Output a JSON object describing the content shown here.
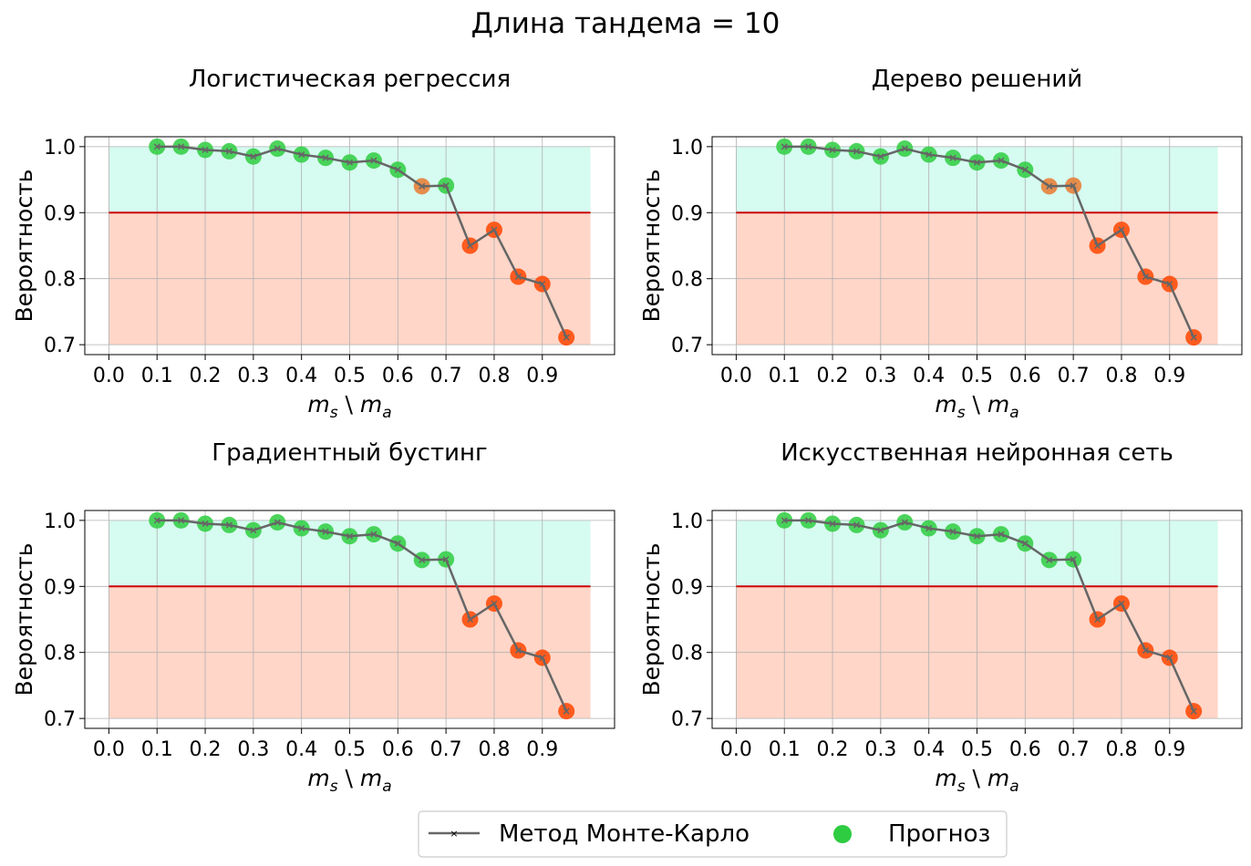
{
  "figure": {
    "suptitle": "Длина тандема = 10"
  },
  "legend": {
    "items": [
      {
        "label": "Метод Монте-Карло",
        "kind": "line-x",
        "color": "#666666"
      },
      {
        "label": "Прогноз",
        "kind": "dot",
        "color": "#2ecc40"
      }
    ]
  },
  "colors": {
    "ok_region": "#d6fbf0",
    "bad_region": "#ffd6c8",
    "threshold_line": "#cc0000",
    "mc_line": "#666666",
    "pred_ok": "#2ecc40",
    "pred_bad": "#ff4500"
  },
  "chart_data": [
    {
      "type": "line",
      "title": "Логистическая регрессия",
      "xlabel": "m_s \\ m_a",
      "ylabel": "Вероятность",
      "xticks": [
        "0.0",
        "0.1",
        "0.2",
        "0.3",
        "0.4",
        "0.5",
        "0.6",
        "0.7",
        "0.8",
        "0.9"
      ],
      "yticks": [
        "0.7",
        "0.8",
        "0.9",
        "1.0"
      ],
      "xlim": [
        -0.05,
        1.05
      ],
      "ylim": [
        0.685,
        1.015
      ],
      "grid": true,
      "threshold": 0.9,
      "x": [
        0.1,
        0.15,
        0.2,
        0.25,
        0.3,
        0.35,
        0.4,
        0.45,
        0.5,
        0.55,
        0.6,
        0.65,
        0.7,
        0.75,
        0.8,
        0.85,
        0.9,
        0.95
      ],
      "series": [
        {
          "name": "Метод Монте-Карло",
          "values": [
            1.0,
            1.0,
            0.995,
            0.993,
            0.985,
            0.997,
            0.988,
            0.983,
            0.976,
            0.979,
            0.965,
            0.94,
            0.941,
            0.85,
            0.874,
            0.803,
            0.792,
            0.711
          ]
        },
        {
          "name": "Прогноз",
          "values": [
            1.0,
            1.0,
            0.995,
            0.993,
            0.985,
            0.997,
            0.988,
            0.983,
            0.976,
            0.979,
            0.965,
            0.94,
            0.941,
            0.85,
            0.874,
            0.803,
            0.792,
            0.711
          ],
          "point_colors": [
            "#2ecc40",
            "#2ecc40",
            "#2ecc40",
            "#2ecc40",
            "#2ecc40",
            "#2ecc40",
            "#2ecc40",
            "#2ecc40",
            "#2ecc40",
            "#2ecc40",
            "#2ecc40",
            "#e8792f",
            "#2ecc40",
            "#ff4500",
            "#ff4500",
            "#ff4500",
            "#ff4500",
            "#ff4500"
          ]
        }
      ]
    },
    {
      "type": "line",
      "title": "Дерево решений",
      "xlabel": "m_s \\ m_a",
      "ylabel": "Вероятность",
      "xticks": [
        "0.0",
        "0.1",
        "0.2",
        "0.3",
        "0.4",
        "0.5",
        "0.6",
        "0.7",
        "0.8",
        "0.9"
      ],
      "yticks": [
        "0.7",
        "0.8",
        "0.9",
        "1.0"
      ],
      "xlim": [
        -0.05,
        1.05
      ],
      "ylim": [
        0.685,
        1.015
      ],
      "grid": true,
      "threshold": 0.9,
      "x": [
        0.1,
        0.15,
        0.2,
        0.25,
        0.3,
        0.35,
        0.4,
        0.45,
        0.5,
        0.55,
        0.6,
        0.65,
        0.7,
        0.75,
        0.8,
        0.85,
        0.9,
        0.95
      ],
      "series": [
        {
          "name": "Метод Монте-Карло",
          "values": [
            1.0,
            1.0,
            0.995,
            0.993,
            0.985,
            0.997,
            0.988,
            0.983,
            0.976,
            0.979,
            0.965,
            0.94,
            0.941,
            0.85,
            0.874,
            0.803,
            0.792,
            0.711
          ]
        },
        {
          "name": "Прогноз",
          "values": [
            1.0,
            1.0,
            0.995,
            0.993,
            0.985,
            0.997,
            0.988,
            0.983,
            0.976,
            0.979,
            0.965,
            0.94,
            0.941,
            0.85,
            0.874,
            0.803,
            0.792,
            0.711
          ],
          "point_colors": [
            "#2ecc40",
            "#2ecc40",
            "#2ecc40",
            "#2ecc40",
            "#2ecc40",
            "#2ecc40",
            "#2ecc40",
            "#2ecc40",
            "#2ecc40",
            "#2ecc40",
            "#2ecc40",
            "#e8792f",
            "#e8792f",
            "#ff4500",
            "#ff4500",
            "#ff4500",
            "#ff4500",
            "#ff4500"
          ]
        }
      ]
    },
    {
      "type": "line",
      "title": "Градиентный бустинг",
      "xlabel": "m_s \\ m_a",
      "ylabel": "Вероятность",
      "xticks": [
        "0.0",
        "0.1",
        "0.2",
        "0.3",
        "0.4",
        "0.5",
        "0.6",
        "0.7",
        "0.8",
        "0.9"
      ],
      "yticks": [
        "0.7",
        "0.8",
        "0.9",
        "1.0"
      ],
      "xlim": [
        -0.05,
        1.05
      ],
      "ylim": [
        0.685,
        1.015
      ],
      "grid": true,
      "threshold": 0.9,
      "x": [
        0.1,
        0.15,
        0.2,
        0.25,
        0.3,
        0.35,
        0.4,
        0.45,
        0.5,
        0.55,
        0.6,
        0.65,
        0.7,
        0.75,
        0.8,
        0.85,
        0.9,
        0.95
      ],
      "series": [
        {
          "name": "Метод Монте-Карло",
          "values": [
            1.0,
            1.0,
            0.995,
            0.993,
            0.985,
            0.997,
            0.988,
            0.983,
            0.976,
            0.979,
            0.965,
            0.94,
            0.941,
            0.85,
            0.874,
            0.803,
            0.792,
            0.711
          ]
        },
        {
          "name": "Прогноз",
          "values": [
            1.0,
            1.0,
            0.995,
            0.993,
            0.985,
            0.997,
            0.988,
            0.983,
            0.976,
            0.979,
            0.965,
            0.94,
            0.941,
            0.85,
            0.874,
            0.803,
            0.792,
            0.711
          ],
          "point_colors": [
            "#2ecc40",
            "#2ecc40",
            "#2ecc40",
            "#2ecc40",
            "#2ecc40",
            "#2ecc40",
            "#2ecc40",
            "#2ecc40",
            "#2ecc40",
            "#2ecc40",
            "#2ecc40",
            "#2ecc40",
            "#2ecc40",
            "#ff4500",
            "#ff4500",
            "#ff4500",
            "#ff4500",
            "#ff4500"
          ]
        }
      ]
    },
    {
      "type": "line",
      "title": "Искусственная нейронная сеть",
      "xlabel": "m_s \\ m_a",
      "ylabel": "Вероятность",
      "xticks": [
        "0.0",
        "0.1",
        "0.2",
        "0.3",
        "0.4",
        "0.5",
        "0.6",
        "0.7",
        "0.8",
        "0.9"
      ],
      "yticks": [
        "0.7",
        "0.8",
        "0.9",
        "1.0"
      ],
      "xlim": [
        -0.05,
        1.05
      ],
      "ylim": [
        0.685,
        1.015
      ],
      "grid": true,
      "threshold": 0.9,
      "x": [
        0.1,
        0.15,
        0.2,
        0.25,
        0.3,
        0.35,
        0.4,
        0.45,
        0.5,
        0.55,
        0.6,
        0.65,
        0.7,
        0.75,
        0.8,
        0.85,
        0.9,
        0.95
      ],
      "series": [
        {
          "name": "Метод Монте-Карло",
          "values": [
            1.0,
            1.0,
            0.995,
            0.993,
            0.985,
            0.997,
            0.988,
            0.983,
            0.976,
            0.979,
            0.965,
            0.94,
            0.941,
            0.85,
            0.874,
            0.803,
            0.792,
            0.711
          ]
        },
        {
          "name": "Прогноз",
          "values": [
            1.0,
            1.0,
            0.995,
            0.993,
            0.985,
            0.997,
            0.988,
            0.983,
            0.976,
            0.979,
            0.965,
            0.94,
            0.941,
            0.85,
            0.874,
            0.803,
            0.792,
            0.711
          ],
          "point_colors": [
            "#2ecc40",
            "#2ecc40",
            "#2ecc40",
            "#2ecc40",
            "#2ecc40",
            "#2ecc40",
            "#2ecc40",
            "#2ecc40",
            "#2ecc40",
            "#2ecc40",
            "#2ecc40",
            "#2ecc40",
            "#2ecc40",
            "#ff4500",
            "#ff4500",
            "#ff4500",
            "#ff4500",
            "#ff4500"
          ]
        }
      ]
    }
  ]
}
